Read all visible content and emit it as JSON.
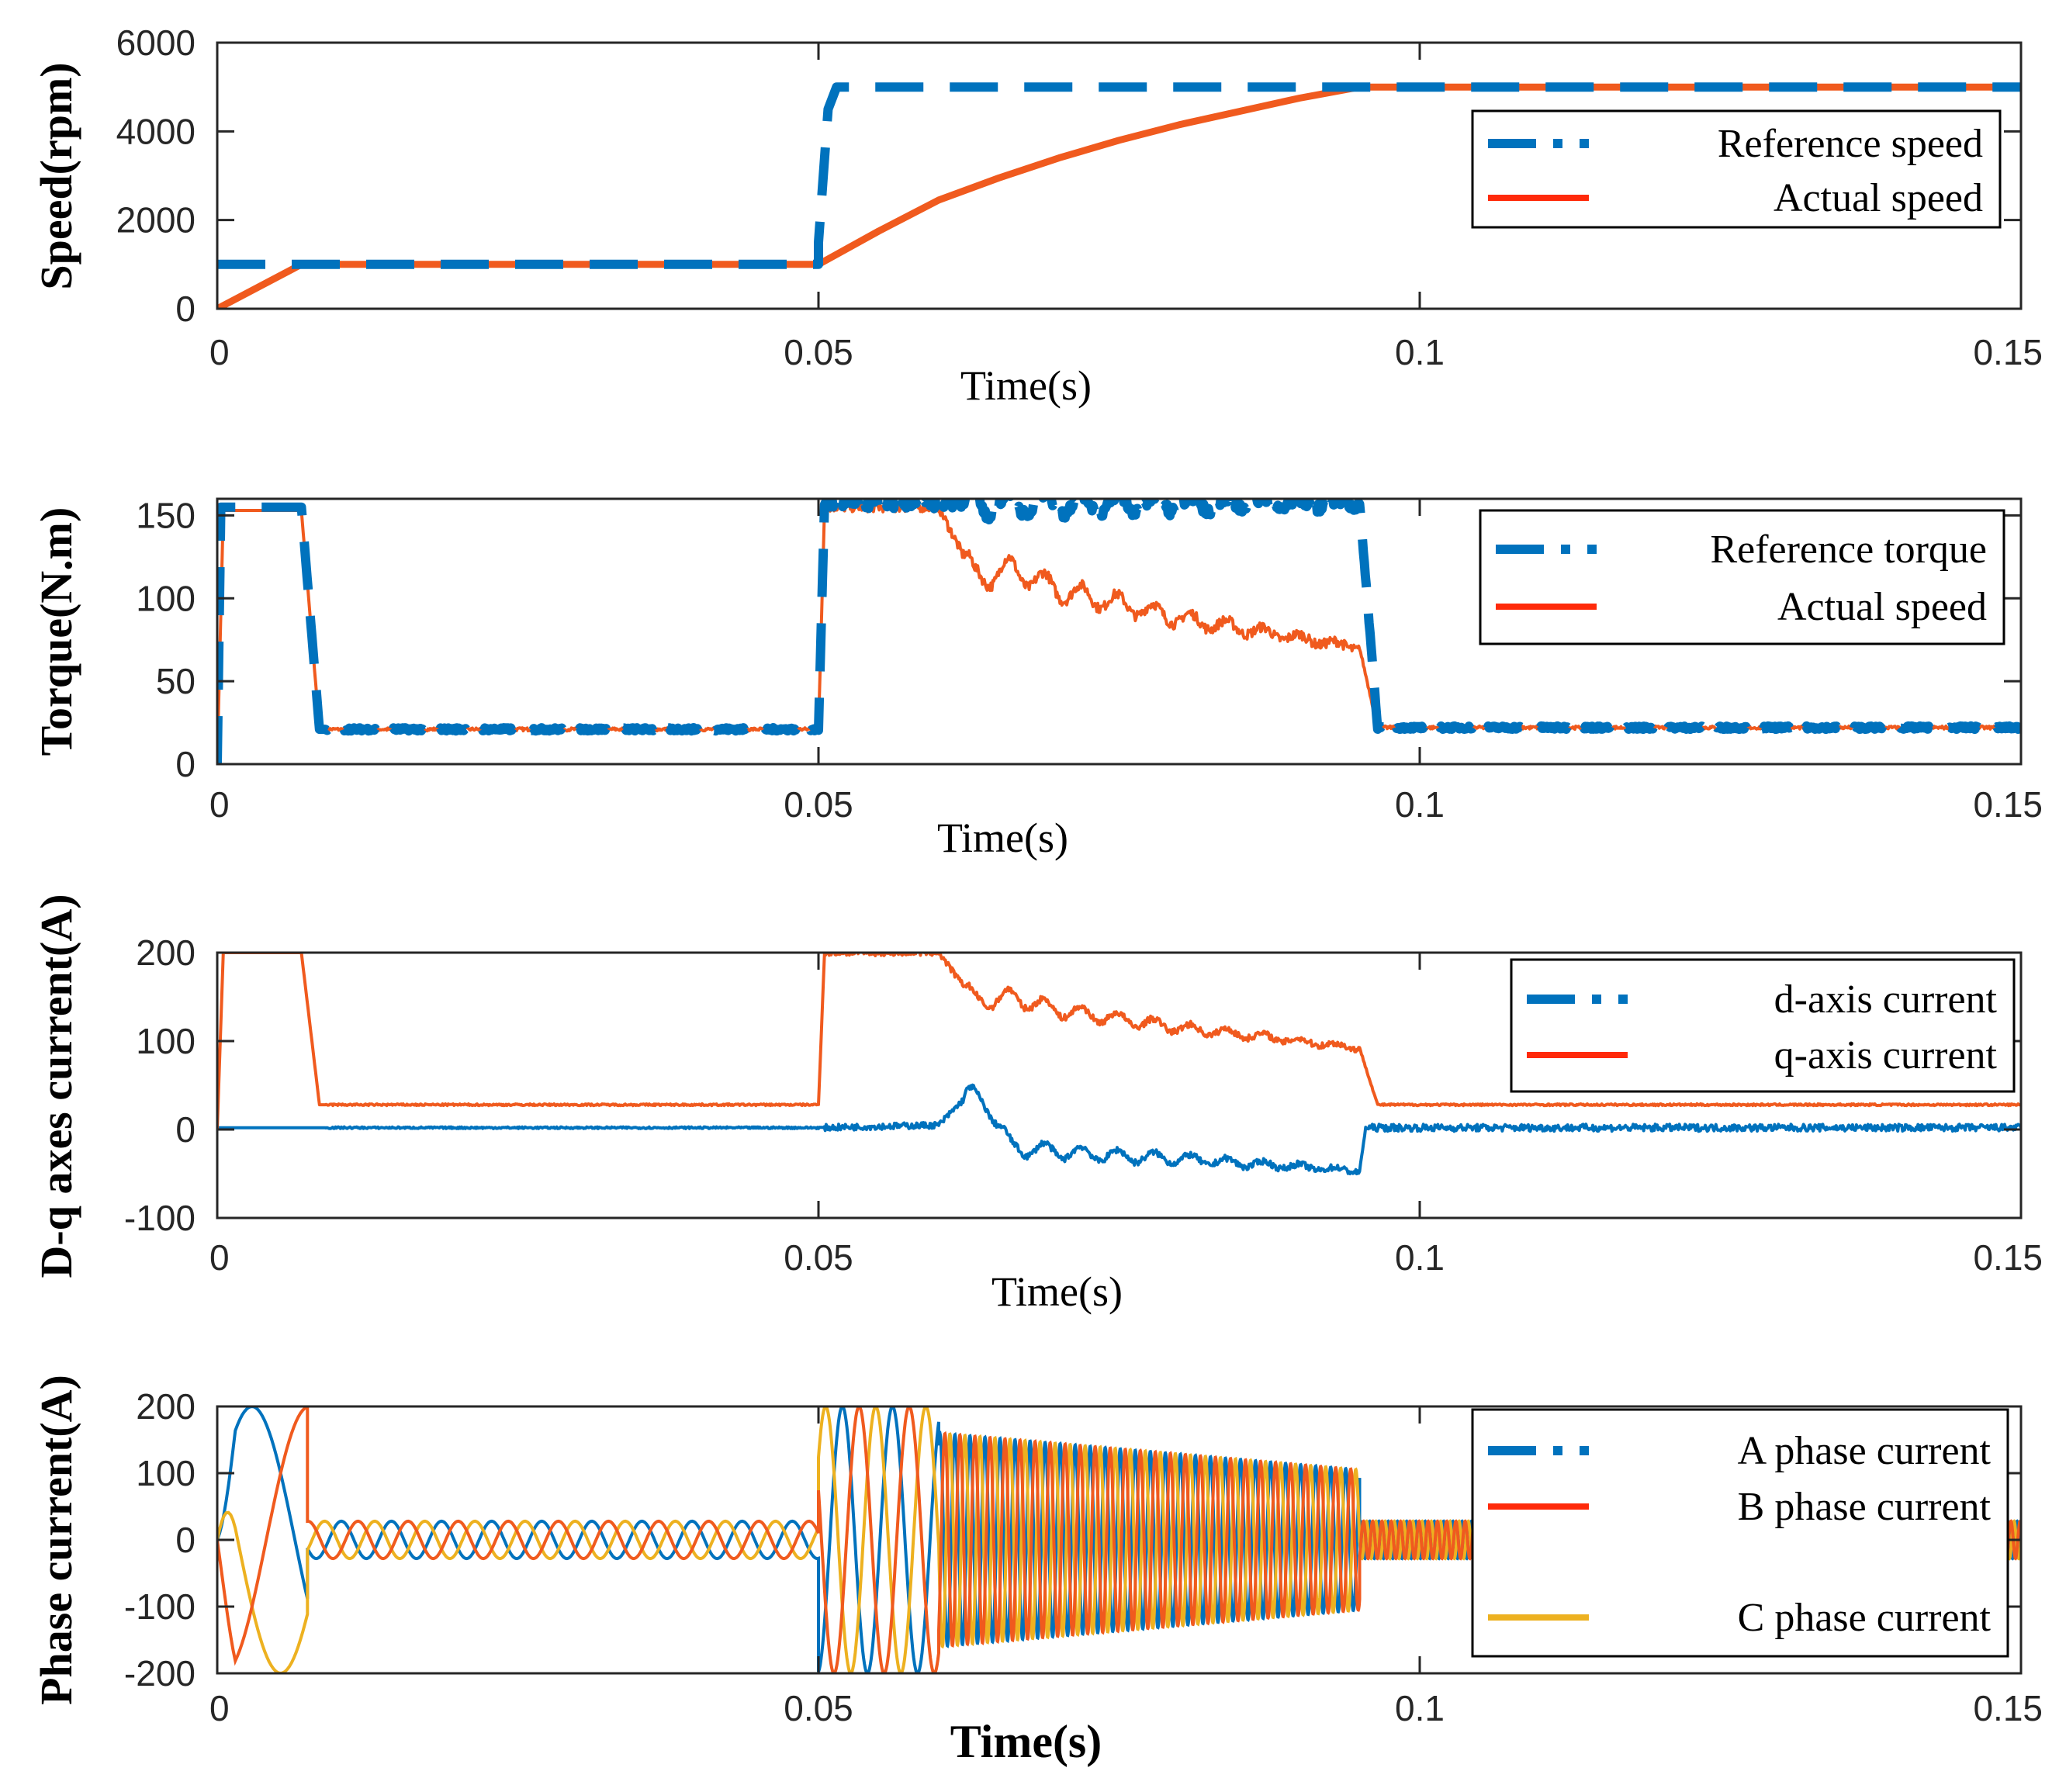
{
  "chart_data": [
    {
      "type": "line",
      "title": "",
      "xlabel": "Time(s)",
      "ylabel": "Speed(rpm)",
      "xlim": [
        0,
        0.15
      ],
      "ylim": [
        0,
        6000
      ],
      "xticks": [
        0,
        0.05,
        0.1,
        0.15
      ],
      "xtick_labels": [
        "0",
        "0.05",
        "0.1",
        "0.15"
      ],
      "yticks": [
        0,
        2000,
        4000,
        6000
      ],
      "ytick_labels": [
        "0",
        "2000",
        "4000",
        "6000"
      ],
      "legend_position": "top-right",
      "series": [
        {
          "name": "Reference speed",
          "style": "dashed",
          "color": "#0072BD",
          "x": [
            0,
            0.05,
            0.05,
            0.0508,
            0.0515,
            0.15
          ],
          "y": [
            1000,
            1000,
            1500,
            4500,
            5000,
            5000
          ]
        },
        {
          "name": "Actual speed",
          "style": "solid",
          "color": "#F05A1E",
          "x": [
            0,
            0.007,
            0.05,
            0.055,
            0.06,
            0.065,
            0.07,
            0.075,
            0.08,
            0.085,
            0.09,
            0.095,
            0.15
          ],
          "y": [
            0,
            1000,
            1000,
            1750,
            2450,
            2950,
            3400,
            3800,
            4150,
            4450,
            4750,
            5000,
            5000
          ]
        }
      ]
    },
    {
      "type": "line",
      "title": "",
      "xlabel": "Time(s)",
      "ylabel": "Torque(N.m)",
      "xlim": [
        0,
        0.15
      ],
      "ylim": [
        0,
        160
      ],
      "xticks": [
        0,
        0.05,
        0.1,
        0.15
      ],
      "xtick_labels": [
        "0",
        "0.05",
        "0.1",
        "0.15"
      ],
      "yticks": [
        0,
        50,
        100,
        150
      ],
      "ytick_labels": [
        "0",
        "50",
        "100",
        "150"
      ],
      "legend_position": "top-right",
      "series": [
        {
          "name": "Reference torque",
          "style": "dashed",
          "color": "#0072BD",
          "x": [
            0,
            0.0003,
            0.007,
            0.0085,
            0.05,
            0.0505,
            0.095,
            0.0965,
            0.15
          ],
          "y": [
            0,
            155,
            155,
            21,
            21,
            157,
            157,
            22,
            22
          ]
        },
        {
          "name": "Actual speed",
          "style": "solid",
          "color": "#F05A1E",
          "x": [
            0,
            0.0005,
            0.007,
            0.0085,
            0.05,
            0.0505,
            0.06,
            0.063,
            0.066,
            0.07,
            0.075,
            0.08,
            0.085,
            0.09,
            0.095,
            0.0965,
            0.15
          ],
          "y": [
            0,
            153,
            153,
            21,
            21,
            155,
            155,
            112,
            118,
            105,
            97,
            88,
            82,
            76,
            70,
            22,
            22
          ]
        }
      ]
    },
    {
      "type": "line",
      "title": "",
      "xlabel": "Time(s)",
      "ylabel": "D-q axes current(A)",
      "xlim": [
        0,
        0.15
      ],
      "ylim": [
        -100,
        200
      ],
      "xticks": [
        0,
        0.05,
        0.1,
        0.15
      ],
      "xtick_labels": [
        "0",
        "0.05",
        "0.1",
        "0.15"
      ],
      "yticks": [
        -100,
        0,
        100,
        200
      ],
      "ytick_labels": [
        "-100",
        "0",
        "100",
        "200"
      ],
      "legend_position": "right",
      "series": [
        {
          "name": "d-axis current",
          "style": "dashed",
          "color": "#0072BD",
          "x": [
            0,
            0.05,
            0.06,
            0.0625,
            0.064,
            0.066,
            0.07,
            0.075,
            0.08,
            0.085,
            0.09,
            0.095,
            0.0955,
            0.15
          ],
          "y": [
            2,
            2,
            5,
            40,
            30,
            -20,
            -25,
            -30,
            -33,
            -38,
            -42,
            -47,
            2,
            2
          ]
        },
        {
          "name": "q-axis current",
          "style": "solid",
          "color": "#F05A1E",
          "x": [
            0,
            0.0005,
            0.007,
            0.0085,
            0.05,
            0.0505,
            0.06,
            0.063,
            0.066,
            0.07,
            0.075,
            0.08,
            0.085,
            0.09,
            0.095,
            0.0965,
            0.15
          ],
          "y": [
            0,
            200,
            200,
            28,
            28,
            200,
            200,
            145,
            150,
            135,
            125,
            115,
            108,
            100,
            92,
            28,
            28
          ]
        }
      ]
    },
    {
      "type": "line",
      "title": "",
      "xlabel": "Time(s)",
      "ylabel": "Phase current(A)",
      "xlim": [
        0,
        0.15
      ],
      "ylim": [
        -200,
        200
      ],
      "xticks": [
        0,
        0.05,
        0.1,
        0.15
      ],
      "xtick_labels": [
        "0",
        "0.05",
        "0.1",
        "0.15"
      ],
      "yticks": [
        -200,
        -100,
        0,
        100,
        200
      ],
      "ytick_labels": [
        "-200",
        "-100",
        "0",
        "100",
        "200"
      ],
      "legend_position": "right",
      "series": [
        {
          "name": "A phase current",
          "style": "solid",
          "color": "#0072BD"
        },
        {
          "name": "B phase current",
          "style": "solid",
          "color": "#F05A1E"
        },
        {
          "name": "C phase current",
          "style": "solid",
          "color": "#EDB120"
        }
      ],
      "waveform": {
        "segments": [
          {
            "t": [
              0,
              0.0075
            ],
            "amplitude": 200,
            "frequency_hz": 70
          },
          {
            "t": [
              0.0075,
              0.05
            ],
            "amplitude": 28,
            "frequency_hz": 240
          },
          {
            "t": [
              0.05,
              0.06
            ],
            "amplitude": 200,
            "frequency_hz": 240
          },
          {
            "t": [
              0.06,
              0.095
            ],
            "amplitude": 105,
            "frequency_hz": 800
          },
          {
            "t": [
              0.095,
              0.15
            ],
            "amplitude": 28,
            "frequency_hz": 1300
          }
        ]
      }
    }
  ]
}
